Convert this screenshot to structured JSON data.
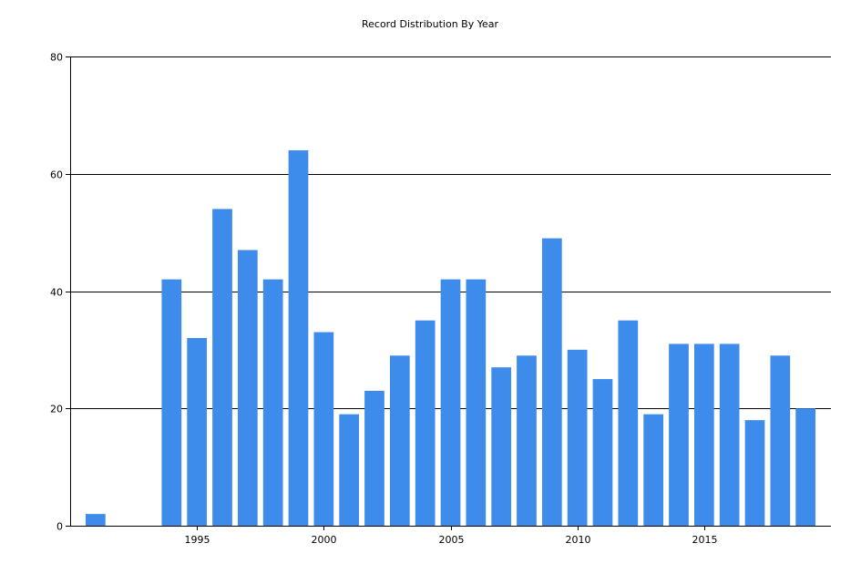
{
  "chart_data": {
    "type": "bar",
    "title": "Record Distribution By Year",
    "xlabel": "",
    "ylabel": "",
    "x": [
      1991,
      1994,
      1995,
      1996,
      1997,
      1998,
      1999,
      2000,
      2001,
      2002,
      2003,
      2004,
      2005,
      2006,
      2007,
      2008,
      2009,
      2010,
      2011,
      2012,
      2013,
      2014,
      2015,
      2016,
      2017,
      2018,
      2019
    ],
    "values": [
      2,
      42,
      32,
      54,
      47,
      42,
      64,
      33,
      19,
      23,
      29,
      35,
      42,
      42,
      27,
      29,
      49,
      30,
      25,
      35,
      19,
      31,
      31,
      31,
      18,
      29,
      20
    ],
    "xlim": [
      1990,
      2020
    ],
    "ylim": [
      0,
      80
    ],
    "x_ticks": [
      1995,
      2000,
      2005,
      2010,
      2015
    ],
    "y_ticks": [
      0,
      20,
      40,
      60,
      80
    ],
    "grid": "horizontal",
    "legend": "none",
    "bar_color": "#3d8beb",
    "grid_color": "#000000",
    "axis_color": "#000000"
  }
}
